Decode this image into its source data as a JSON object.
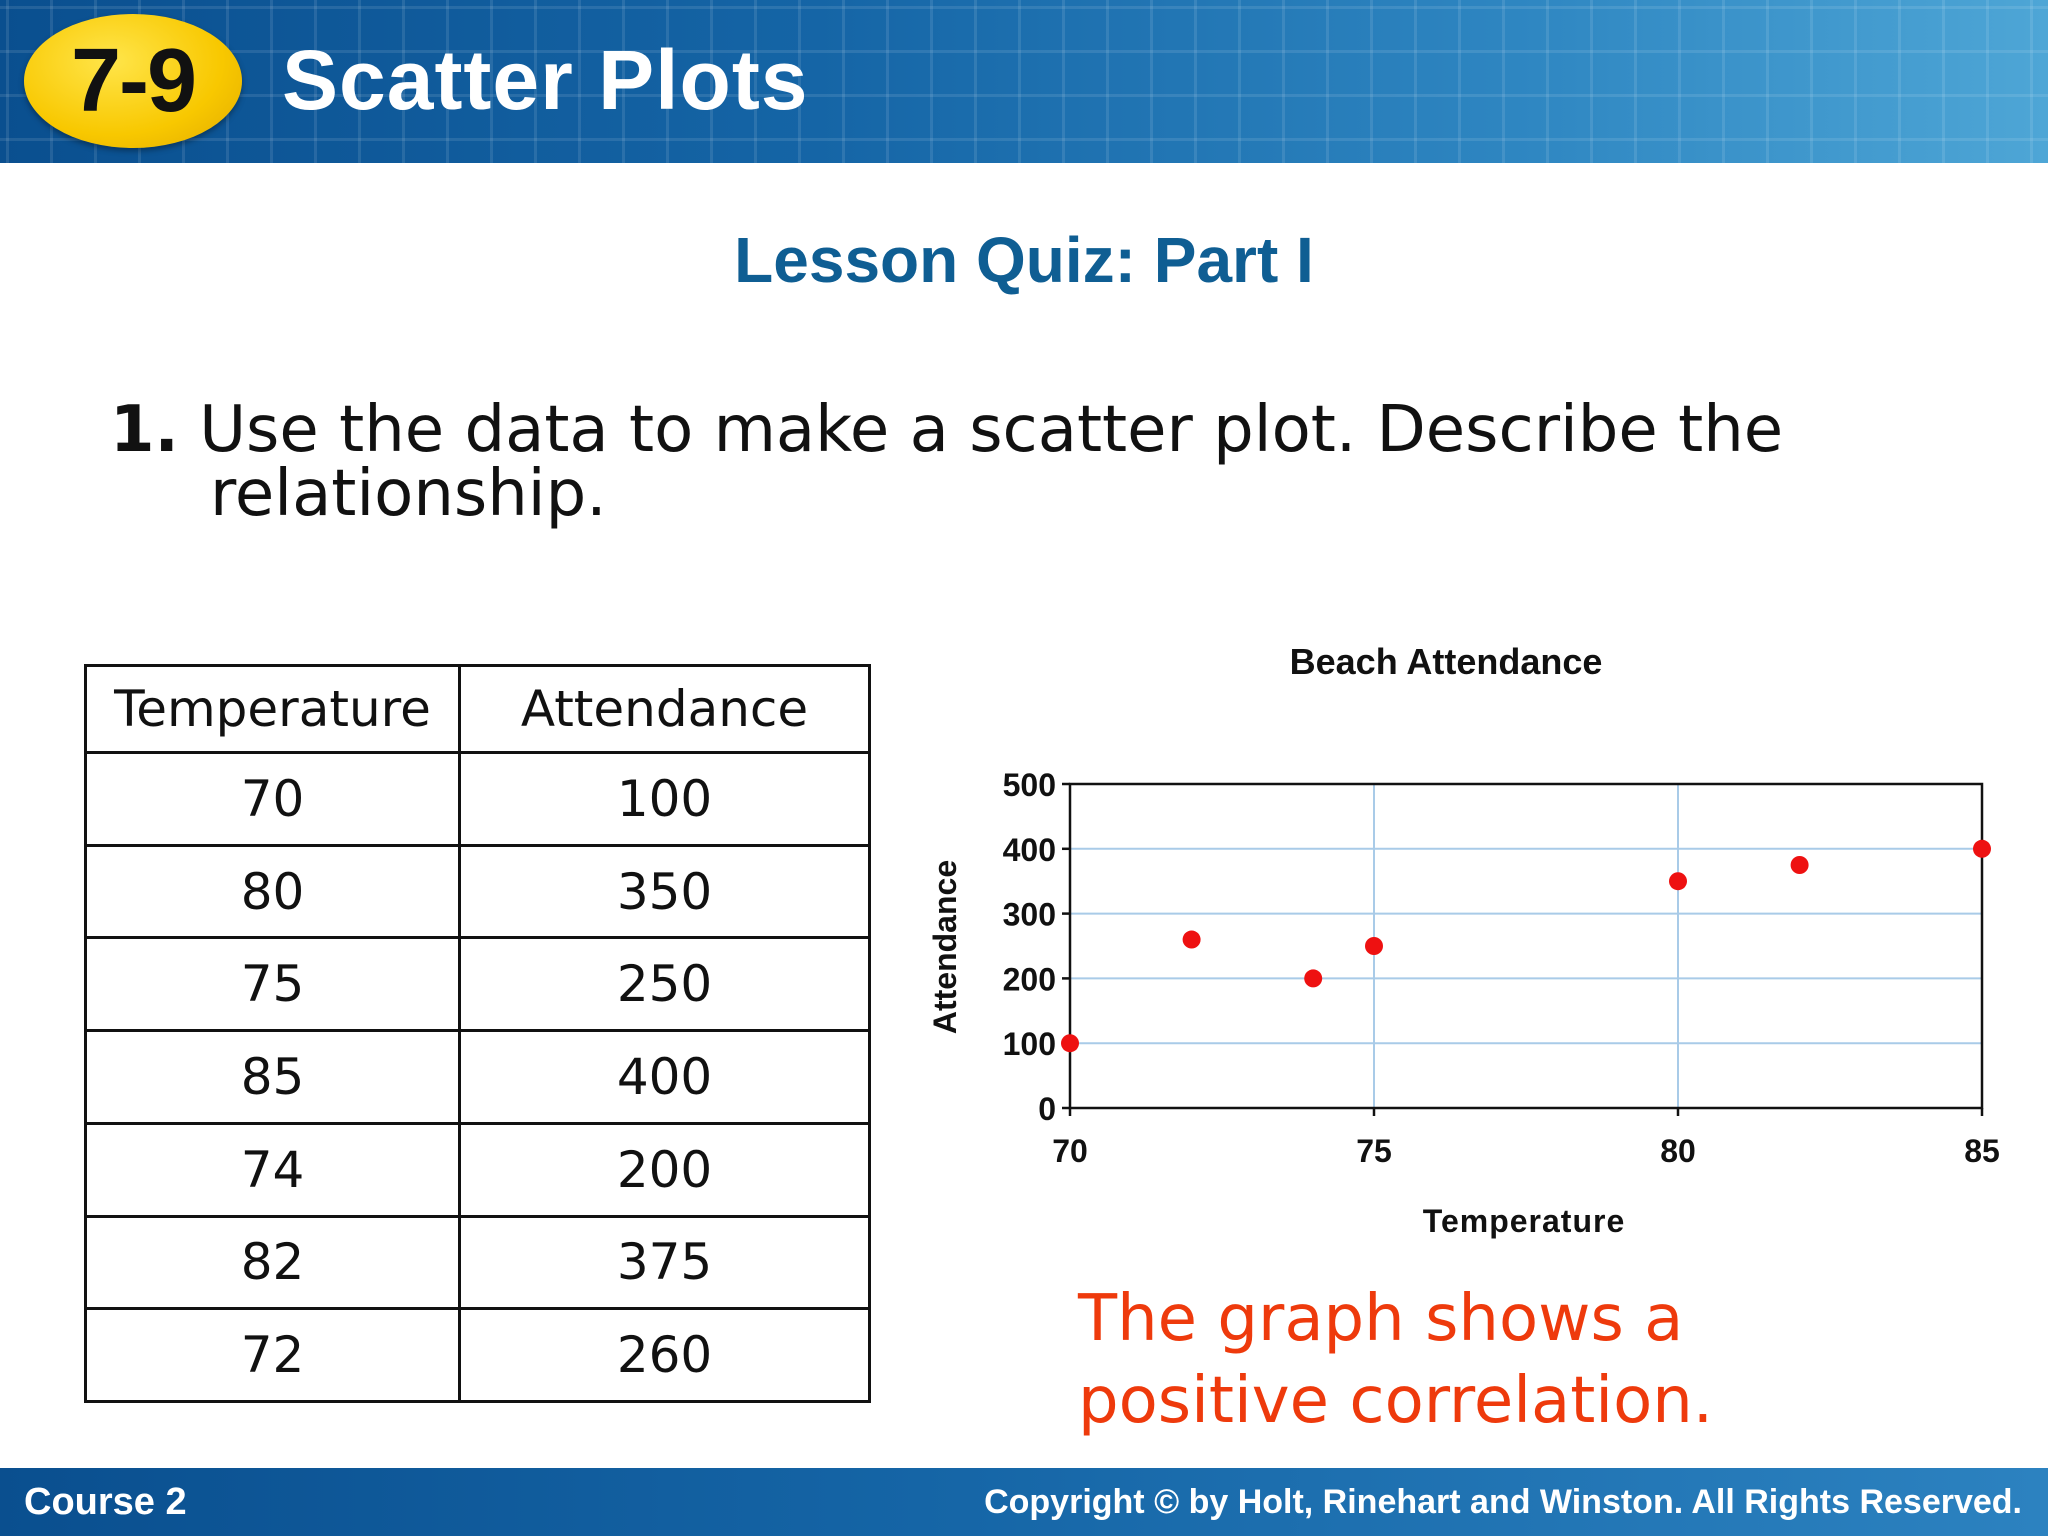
{
  "header": {
    "lesson_number": "7-9",
    "lesson_title": "Scatter Plots"
  },
  "quiz_title": "Lesson Quiz: Part I",
  "question": {
    "number": "1.",
    "text": "Use the data to make a scatter plot. Describe the relationship."
  },
  "table": {
    "headers": [
      "Temperature",
      "Attendance"
    ],
    "rows": [
      [
        "70",
        "100"
      ],
      [
        "80",
        "350"
      ],
      [
        "75",
        "250"
      ],
      [
        "85",
        "400"
      ],
      [
        "74",
        "200"
      ],
      [
        "82",
        "375"
      ],
      [
        "72",
        "260"
      ]
    ]
  },
  "answer": {
    "line1": "The graph shows a",
    "line2": "positive correlation."
  },
  "footer": {
    "course": "Course 2",
    "copyright": "Copyright © by Holt, Rinehart and Winston. All Rights Reserved."
  },
  "colors": {
    "point": "#ee1111",
    "grid": "#a9cbe8",
    "answer_text": "#ee3a0c",
    "quiz_title": "#0f5e93",
    "badge": "#f8c800",
    "banner": "#1565a6"
  },
  "chart_data": {
    "type": "scatter",
    "title": "Beach Attendance",
    "xlabel": "Temperature",
    "ylabel": "Attendance",
    "xlim": [
      70,
      85
    ],
    "ylim": [
      0,
      500
    ],
    "xticks": [
      70,
      75,
      80,
      85
    ],
    "yticks": [
      0,
      100,
      200,
      300,
      400,
      500
    ],
    "grid": true,
    "points": [
      {
        "x": 70,
        "y": 100
      },
      {
        "x": 80,
        "y": 350
      },
      {
        "x": 75,
        "y": 250
      },
      {
        "x": 85,
        "y": 400
      },
      {
        "x": 74,
        "y": 200
      },
      {
        "x": 82,
        "y": 375
      },
      {
        "x": 72,
        "y": 260
      }
    ]
  }
}
